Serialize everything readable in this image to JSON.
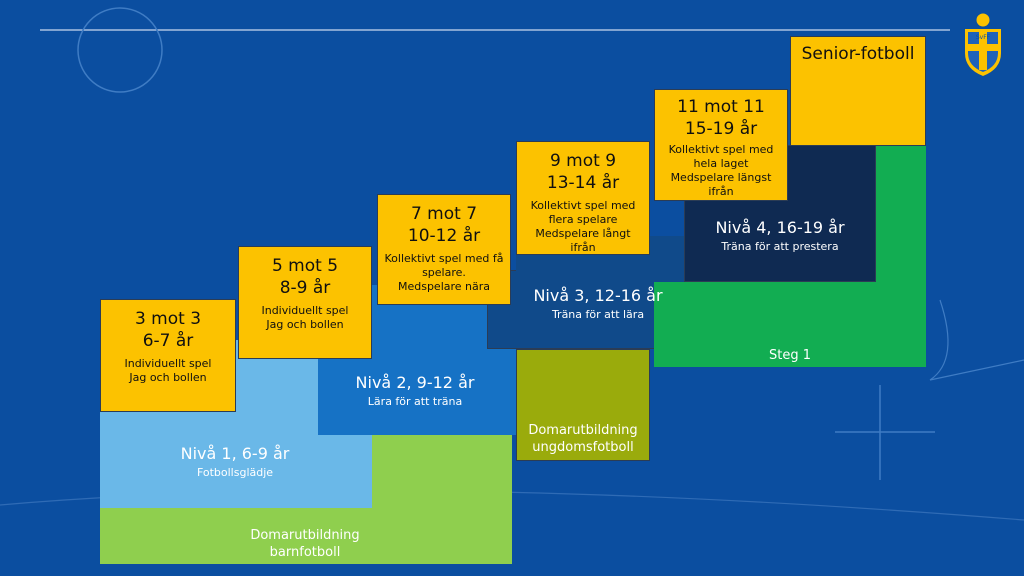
{
  "colors": {
    "background": "#0b4ea0",
    "yellow": "#fcc200",
    "green_light": "#8fcf4e",
    "blue_light": "#6ab8e8",
    "blue_mid": "#1672c5",
    "blue_navy": "#104a8a",
    "navy_dark": "#0f2a52",
    "olive": "#9aab0c",
    "green": "#12ad52"
  },
  "icons": {
    "logo": "svff-crest-icon"
  },
  "logo_text": "SvFF",
  "age_groups": [
    {
      "format": "3 mot 3",
      "age": "6-7 år",
      "desc1": "Individuellt spel",
      "desc2": "Jag och bollen"
    },
    {
      "format": "5 mot 5",
      "age": "8-9 år",
      "desc1": "Individuellt spel",
      "desc2": "Jag och bollen"
    },
    {
      "format": "7 mot 7",
      "age": "10-12 år",
      "desc1": "Kollektivt spel med få spelare.",
      "desc2": "Medspelare nära"
    },
    {
      "format": "9 mot 9",
      "age": "13-14 år",
      "desc1": "Kollektivt spel med flera spelare",
      "desc2": "Medspelare långt ifrån"
    },
    {
      "format": "11 mot 11",
      "age": "15-19 år",
      "desc1": "Kollektivt spel med hela laget",
      "desc2": "Medspelare längst ifrån"
    }
  ],
  "senior": "Senior-fotboll",
  "levels": [
    {
      "title": "Nivå 1, 6-9 år",
      "subtitle": "Fotbollsglädje"
    },
    {
      "title": "Nivå 2, 9-12 år",
      "subtitle": "Lära för att träna"
    },
    {
      "title": "Nivå 3, 12-16 år",
      "subtitle": "Träna för att lära"
    },
    {
      "title": "Nivå 4, 16-19 år",
      "subtitle": "Träna för att prestera"
    }
  ],
  "referee": {
    "children_line1": "Domarutbildning",
    "children_line2": "barnfotboll",
    "youth_line1": "Domarutbildning",
    "youth_line2": "ungdomsfotboll"
  },
  "step": "Steg 1"
}
